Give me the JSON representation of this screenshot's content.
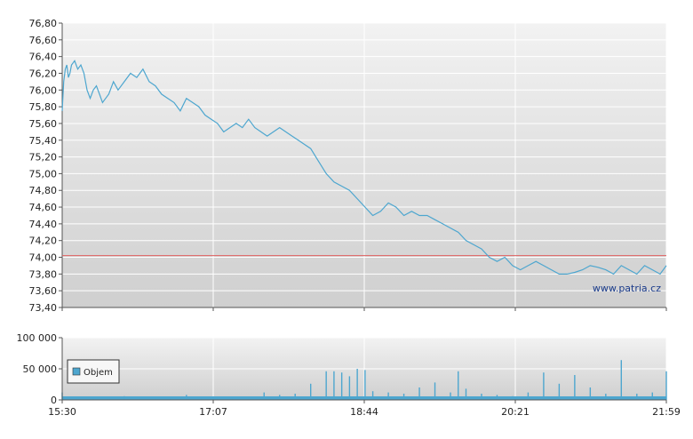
{
  "chart_data": [
    {
      "type": "line",
      "title": "",
      "xlabel": "",
      "ylabel": "",
      "ylim": [
        73.4,
        76.8
      ],
      "y_ticks": [
        "76,80",
        "76,60",
        "76,40",
        "76,20",
        "76,00",
        "75,80",
        "75,60",
        "75,40",
        "75,20",
        "75,00",
        "74,80",
        "74,60",
        "74,40",
        "74,20",
        "74,00",
        "73,80",
        "73,60",
        "73,40"
      ],
      "x_ticks": [
        "15:30",
        "17:07",
        "18:44",
        "20:21",
        "21:59"
      ],
      "reference_line": {
        "value": 74.02,
        "color": "#e06060"
      },
      "watermark": "www.patria.cz",
      "line_color": "#4da6cf",
      "grid": true,
      "series": [
        {
          "x": [
            0,
            1,
            2,
            3,
            4,
            5,
            6,
            8,
            10,
            12,
            14,
            16,
            18,
            20,
            22,
            24,
            26,
            28,
            30,
            33,
            36,
            40,
            44,
            48,
            52,
            56,
            60,
            64,
            68,
            72,
            76,
            80,
            84,
            88,
            92,
            96,
            100,
            104,
            108,
            112,
            116,
            120,
            124,
            128,
            132,
            136,
            140,
            144,
            148,
            152,
            156,
            160,
            165,
            170,
            175,
            180,
            185,
            190,
            195,
            200,
            205,
            210,
            215,
            220,
            225,
            230,
            235,
            240,
            245,
            250,
            255,
            260,
            265,
            270,
            275,
            280,
            285,
            290,
            295,
            300,
            305,
            310,
            315,
            320,
            325,
            330,
            335,
            340,
            345,
            350,
            355,
            360,
            365,
            370,
            375,
            380,
            385,
            389
          ],
          "values": [
            75.75,
            76.1,
            76.25,
            76.3,
            76.15,
            76.2,
            76.3,
            76.35,
            76.25,
            76.3,
            76.2,
            76.0,
            75.9,
            76.0,
            76.05,
            75.95,
            75.85,
            75.9,
            75.95,
            76.1,
            76.0,
            76.1,
            76.2,
            76.15,
            76.25,
            76.1,
            76.05,
            75.95,
            75.9,
            75.85,
            75.75,
            75.9,
            75.85,
            75.8,
            75.7,
            75.65,
            75.6,
            75.5,
            75.55,
            75.6,
            75.55,
            75.65,
            75.55,
            75.5,
            75.45,
            75.5,
            75.55,
            75.5,
            75.45,
            75.4,
            75.35,
            75.3,
            75.15,
            75.0,
            74.9,
            74.85,
            74.8,
            74.7,
            74.6,
            74.5,
            74.55,
            74.65,
            74.6,
            74.5,
            74.55,
            74.5,
            74.5,
            74.45,
            74.4,
            74.35,
            74.3,
            74.2,
            74.15,
            74.1,
            74.0,
            73.95,
            74.0,
            73.9,
            73.85,
            73.9,
            73.95,
            73.9,
            73.85,
            73.8,
            73.8,
            73.82,
            73.85,
            73.9,
            73.88,
            73.85,
            73.8,
            73.9,
            73.85,
            73.8,
            73.9,
            73.85,
            73.8,
            73.9
          ]
        }
      ]
    },
    {
      "type": "bar",
      "title": "",
      "xlabel": "",
      "ylabel": "",
      "ylim": [
        0,
        100000
      ],
      "y_ticks": [
        "100 000",
        "50 000",
        "0"
      ],
      "x_ticks": [
        "15:30",
        "17:07",
        "18:44",
        "20:21",
        "21:59"
      ],
      "legend": {
        "position": "left",
        "label": "Objem"
      },
      "bar_color": "#4da6cf",
      "series": [
        {
          "name": "Objem",
          "x": [
            0,
            10,
            20,
            30,
            40,
            50,
            60,
            70,
            80,
            90,
            100,
            110,
            120,
            130,
            140,
            150,
            160,
            170,
            175,
            180,
            185,
            190,
            195,
            200,
            210,
            220,
            230,
            240,
            250,
            255,
            260,
            270,
            280,
            290,
            300,
            310,
            320,
            330,
            340,
            350,
            360,
            370,
            380,
            389
          ],
          "values": [
            12000,
            3000,
            4000,
            3000,
            6000,
            2000,
            3000,
            4000,
            8000,
            3000,
            5000,
            4000,
            3000,
            12000,
            8000,
            10000,
            26000,
            46000,
            46000,
            44000,
            38000,
            50000,
            48000,
            14000,
            12000,
            10000,
            20000,
            28000,
            12000,
            46000,
            18000,
            10000,
            8000,
            6000,
            12000,
            44000,
            26000,
            40000,
            20000,
            10000,
            64000,
            10000,
            12000,
            46000
          ]
        }
      ]
    }
  ]
}
